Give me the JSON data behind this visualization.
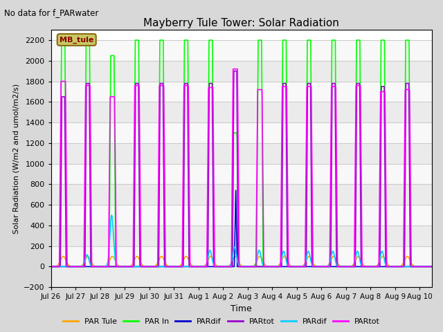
{
  "title": "Mayberry Tule Tower: Solar Radiation",
  "subtitle": "No data for f_PARwater",
  "xlabel": "Time",
  "ylabel": "Solar Radiation (W/m2 and umol/m2/s)",
  "ylim": [
    -200,
    2300
  ],
  "yticks": [
    -200,
    0,
    200,
    400,
    600,
    800,
    1000,
    1200,
    1400,
    1600,
    1800,
    2000,
    2200
  ],
  "fig_bg_color": "#d8d8d8",
  "plot_bg_color": "#ffffff",
  "grid_color": "#cccccc",
  "legend_box_color": "#c8c864",
  "legend_box_text": "MB_tule",
  "legend_box_text_color": "#8b0000",
  "series": {
    "PAR_Tule": {
      "color": "#ffa500",
      "label": "PAR Tule",
      "lw": 1.2
    },
    "PAR_In": {
      "color": "#00ff00",
      "label": "PAR In",
      "lw": 1.2
    },
    "PARdif1": {
      "color": "#0000cd",
      "label": "PARdif",
      "lw": 1.2
    },
    "PARtot1": {
      "color": "#9900cc",
      "label": "PARtot",
      "lw": 1.2
    },
    "PARdif2": {
      "color": "#00ccff",
      "label": "PARdif",
      "lw": 1.2
    },
    "PARtot2": {
      "color": "#ff00ff",
      "label": "PARtot",
      "lw": 1.2
    }
  },
  "xtick_labels": [
    "Jul 26",
    "Jul 27",
    "Jul 28",
    "Jul 29",
    "Jul 30",
    "Jul 31",
    "Aug 1",
    "Aug 2",
    "Aug 3",
    "Aug 4",
    "Aug 5",
    "Aug 6",
    "Aug 7",
    "Aug 8",
    "Aug 9",
    "Aug 10"
  ],
  "par_in_peaks": [
    2200,
    2200,
    2050,
    2200,
    2200,
    2200,
    2200,
    1300,
    2200,
    2200,
    2200,
    2200,
    2200,
    2200,
    2200
  ],
  "par_tot2_peaks": [
    1800,
    1760,
    1650,
    1760,
    1760,
    1760,
    1740,
    1920,
    1720,
    1750,
    1750,
    1750,
    1760,
    1700,
    1720
  ],
  "par_tot1_peaks": [
    1650,
    1780,
    0,
    1780,
    1780,
    1780,
    1780,
    1900,
    0,
    1780,
    1780,
    1780,
    1780,
    1750,
    1780
  ],
  "par_tule_peak": 100,
  "cyan_peaks": {
    "1": 115,
    "2": 500,
    "6": 160,
    "7": 190,
    "8": 160,
    "9": 150,
    "10": 150,
    "11": 150,
    "12": 150,
    "13": 150
  },
  "blue_peak_day": 7,
  "blue_peak_val": 750
}
